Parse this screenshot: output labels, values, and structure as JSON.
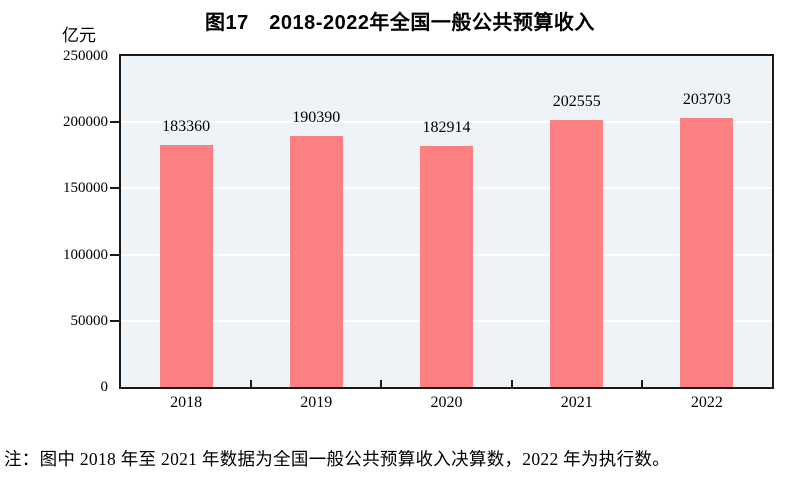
{
  "chart_data": {
    "type": "bar",
    "title": "图17　2018-2022年全国一般公共预算收入",
    "unit_label": "亿元",
    "categories": [
      "2018",
      "2019",
      "2020",
      "2021",
      "2022"
    ],
    "values": [
      183360,
      190390,
      182914,
      202555,
      203703
    ],
    "xlabel": "",
    "ylabel": "亿元",
    "ylim": [
      0,
      250000
    ],
    "yticks": [
      0,
      50000,
      100000,
      150000,
      200000,
      250000
    ],
    "grid": true,
    "legend": false,
    "note": "注：图中 2018 年至 2021 年数据为全国一般公共预算收入决算数，2022 年为执行数。",
    "colors": {
      "bar": "#fc8081",
      "plot_background": "#edf3f7",
      "gridline": "#ffffff",
      "axis": "#1a1a1a",
      "text": "#000000"
    }
  }
}
